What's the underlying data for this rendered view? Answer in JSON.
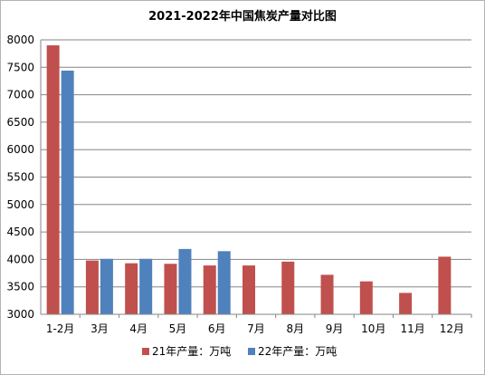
{
  "chart_data": {
    "type": "bar",
    "title": "2021-2022年中国焦炭产量对比图",
    "categories": [
      "1-2月",
      "3月",
      "4月",
      "5月",
      "6月",
      "7月",
      "8月",
      "9月",
      "10月",
      "11月",
      "12月"
    ],
    "series": [
      {
        "name": "21年产量：万吨",
        "color": "#C0504D",
        "values": [
          7900,
          3980,
          3930,
          3920,
          3890,
          3890,
          3960,
          3720,
          3600,
          3390,
          4050
        ]
      },
      {
        "name": "22年产量：万吨",
        "color": "#4F81BD",
        "values": [
          7440,
          4010,
          4010,
          4190,
          4150,
          null,
          null,
          null,
          null,
          null,
          null
        ]
      }
    ],
    "ylim": [
      3000,
      8000
    ],
    "yticks": [
      3000,
      3500,
      4000,
      4500,
      5000,
      5500,
      6000,
      6500,
      7000,
      7500,
      8000
    ],
    "xlabel": "",
    "ylabel": "",
    "grid": true,
    "legend_position": "bottom"
  }
}
